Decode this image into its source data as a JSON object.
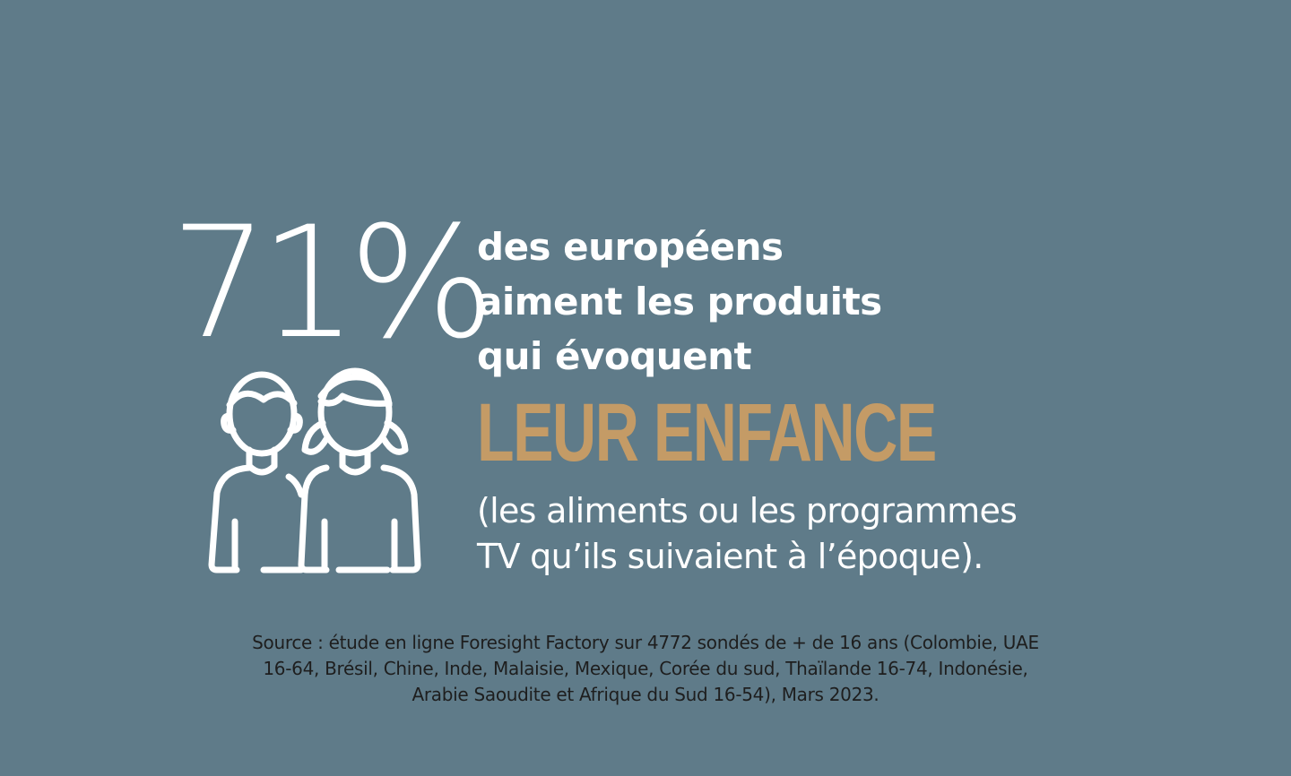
{
  "background_color": "#5f7b89",
  "accent_color": "#c49b66",
  "stat": {
    "value": "71%"
  },
  "icon": "children-icon",
  "headline": {
    "lines": [
      "des européens",
      "aiment les produits",
      "qui évoquent"
    ]
  },
  "emphasis": "LEUR ENFANCE",
  "detail": {
    "lines": [
      "(les aliments ou les programmes",
      "TV qu’ils suivaient à l’époque)."
    ]
  },
  "source": {
    "lines": [
      "Source : étude en ligne Foresight Factory sur 4772 sondés de + de 16 ans (Colombie, UAE",
      "16-64, Brésil, Chine, Inde, Malaisie, Mexique, Corée du sud, Thaïlande 16-74, Indonésie,",
      "Arabie Saoudite et Afrique du Sud 16-54), Mars 2023."
    ]
  }
}
